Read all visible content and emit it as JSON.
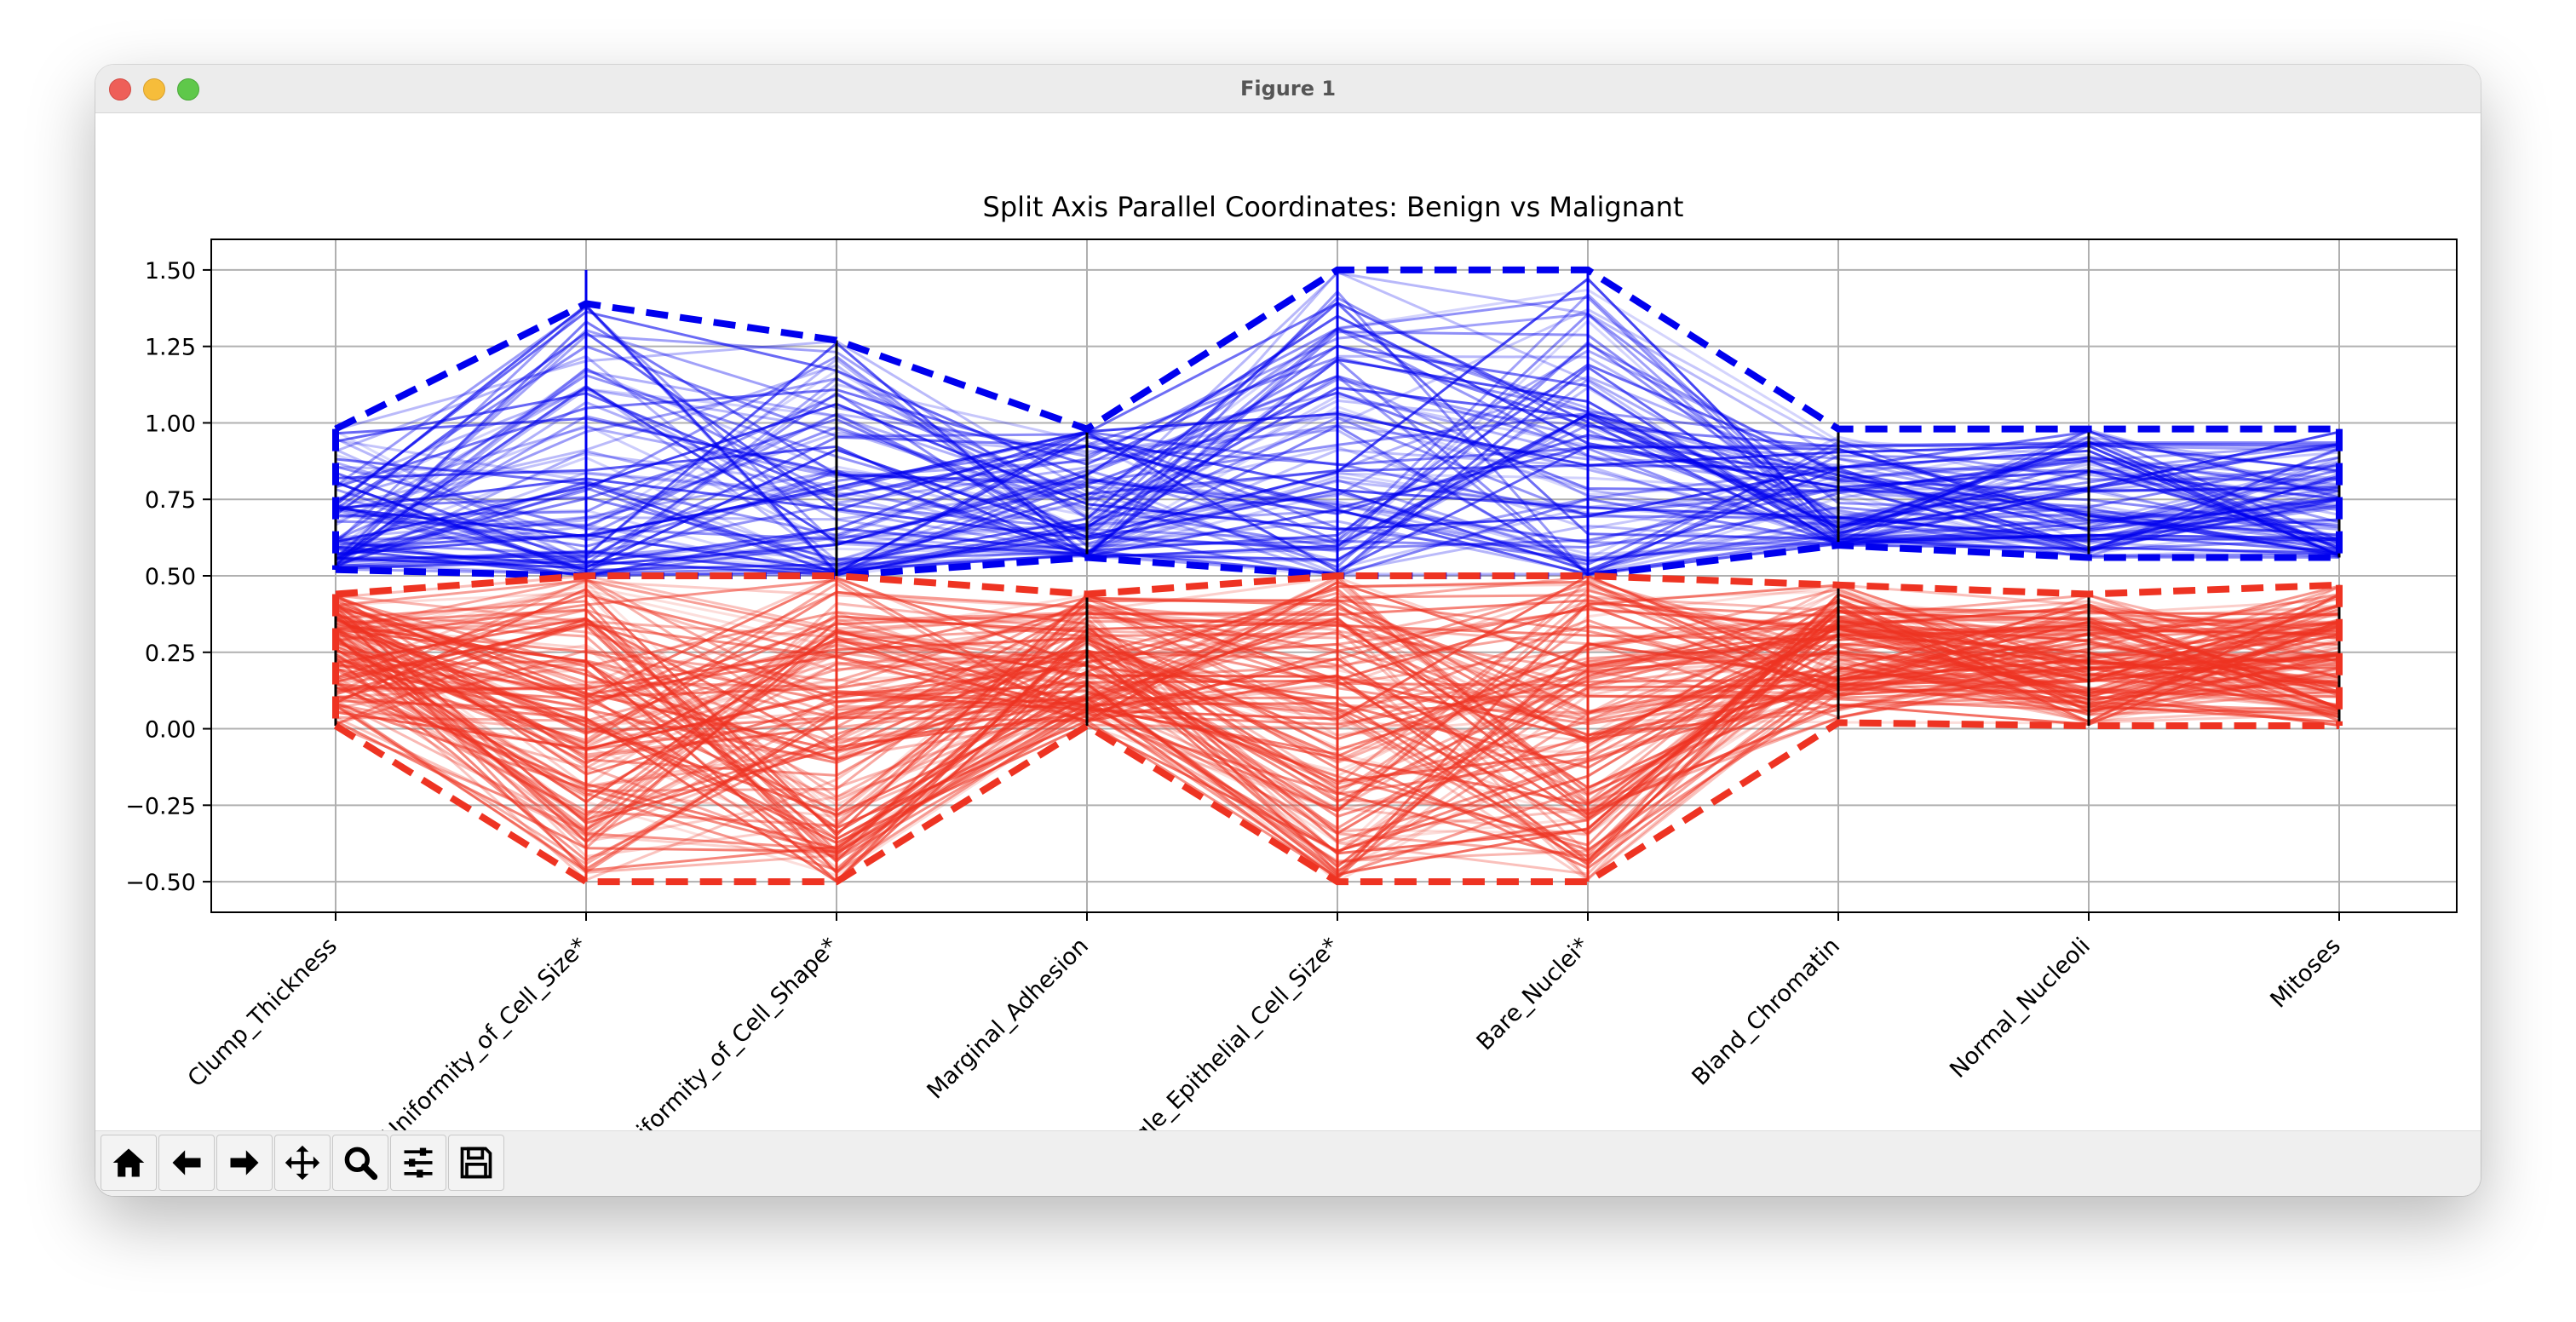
{
  "window": {
    "title": "Figure 1"
  },
  "toolbar": {
    "buttons": [
      {
        "name": "home",
        "icon": "home-icon"
      },
      {
        "name": "back",
        "icon": "arrow-left-icon"
      },
      {
        "name": "forward",
        "icon": "arrow-right-icon"
      },
      {
        "name": "pan",
        "icon": "move-icon"
      },
      {
        "name": "zoom",
        "icon": "magnifier-icon"
      },
      {
        "name": "configure-subplots",
        "icon": "sliders-icon"
      },
      {
        "name": "save",
        "icon": "floppy-disk-icon"
      }
    ]
  },
  "chart_data": {
    "type": "parallel-coordinates",
    "title": "Split Axis Parallel Coordinates: Benign vs Malignant",
    "axes": [
      "Clump_Thickness",
      "Uniformity_of_Cell_Size*",
      "Uniformity_of_Cell_Shape*",
      "Marginal_Adhesion",
      "Single_Epithelial_Cell_Size*",
      "Bare_Nuclei*",
      "Bland_Chromatin",
      "Normal_Nucleoli",
      "Mitoses"
    ],
    "ylim": [
      -0.6,
      1.6
    ],
    "yticks": [
      "1.50",
      "1.25",
      "1.00",
      "0.75",
      "0.50",
      "0.25",
      "0.00",
      "−0.25",
      "−0.50"
    ],
    "ytick_values": [
      1.5,
      1.25,
      1.0,
      0.75,
      0.5,
      0.25,
      0.0,
      -0.25,
      -0.5
    ],
    "grid": true,
    "colors": {
      "benign": "#0000ee",
      "malignant": "#ee3322"
    },
    "series": [
      {
        "group": "benign",
        "axis_min": [
          0.52,
          0.5,
          0.5,
          0.56,
          0.5,
          0.5,
          0.6,
          0.56,
          0.56
        ],
        "axis_max": [
          0.98,
          1.39,
          1.27,
          0.98,
          1.5,
          1.5,
          0.98,
          0.98,
          0.98
        ],
        "value_range": [
          0.5,
          1.5
        ]
      },
      {
        "group": "malignant",
        "axis_min": [
          0.01,
          -0.5,
          -0.5,
          0.01,
          -0.5,
          -0.5,
          0.02,
          0.01,
          0.01
        ],
        "axis_max": [
          0.44,
          0.5,
          0.5,
          0.44,
          0.5,
          0.5,
          0.47,
          0.44,
          0.47
        ],
        "value_range": [
          -0.5,
          0.5
        ]
      }
    ]
  }
}
